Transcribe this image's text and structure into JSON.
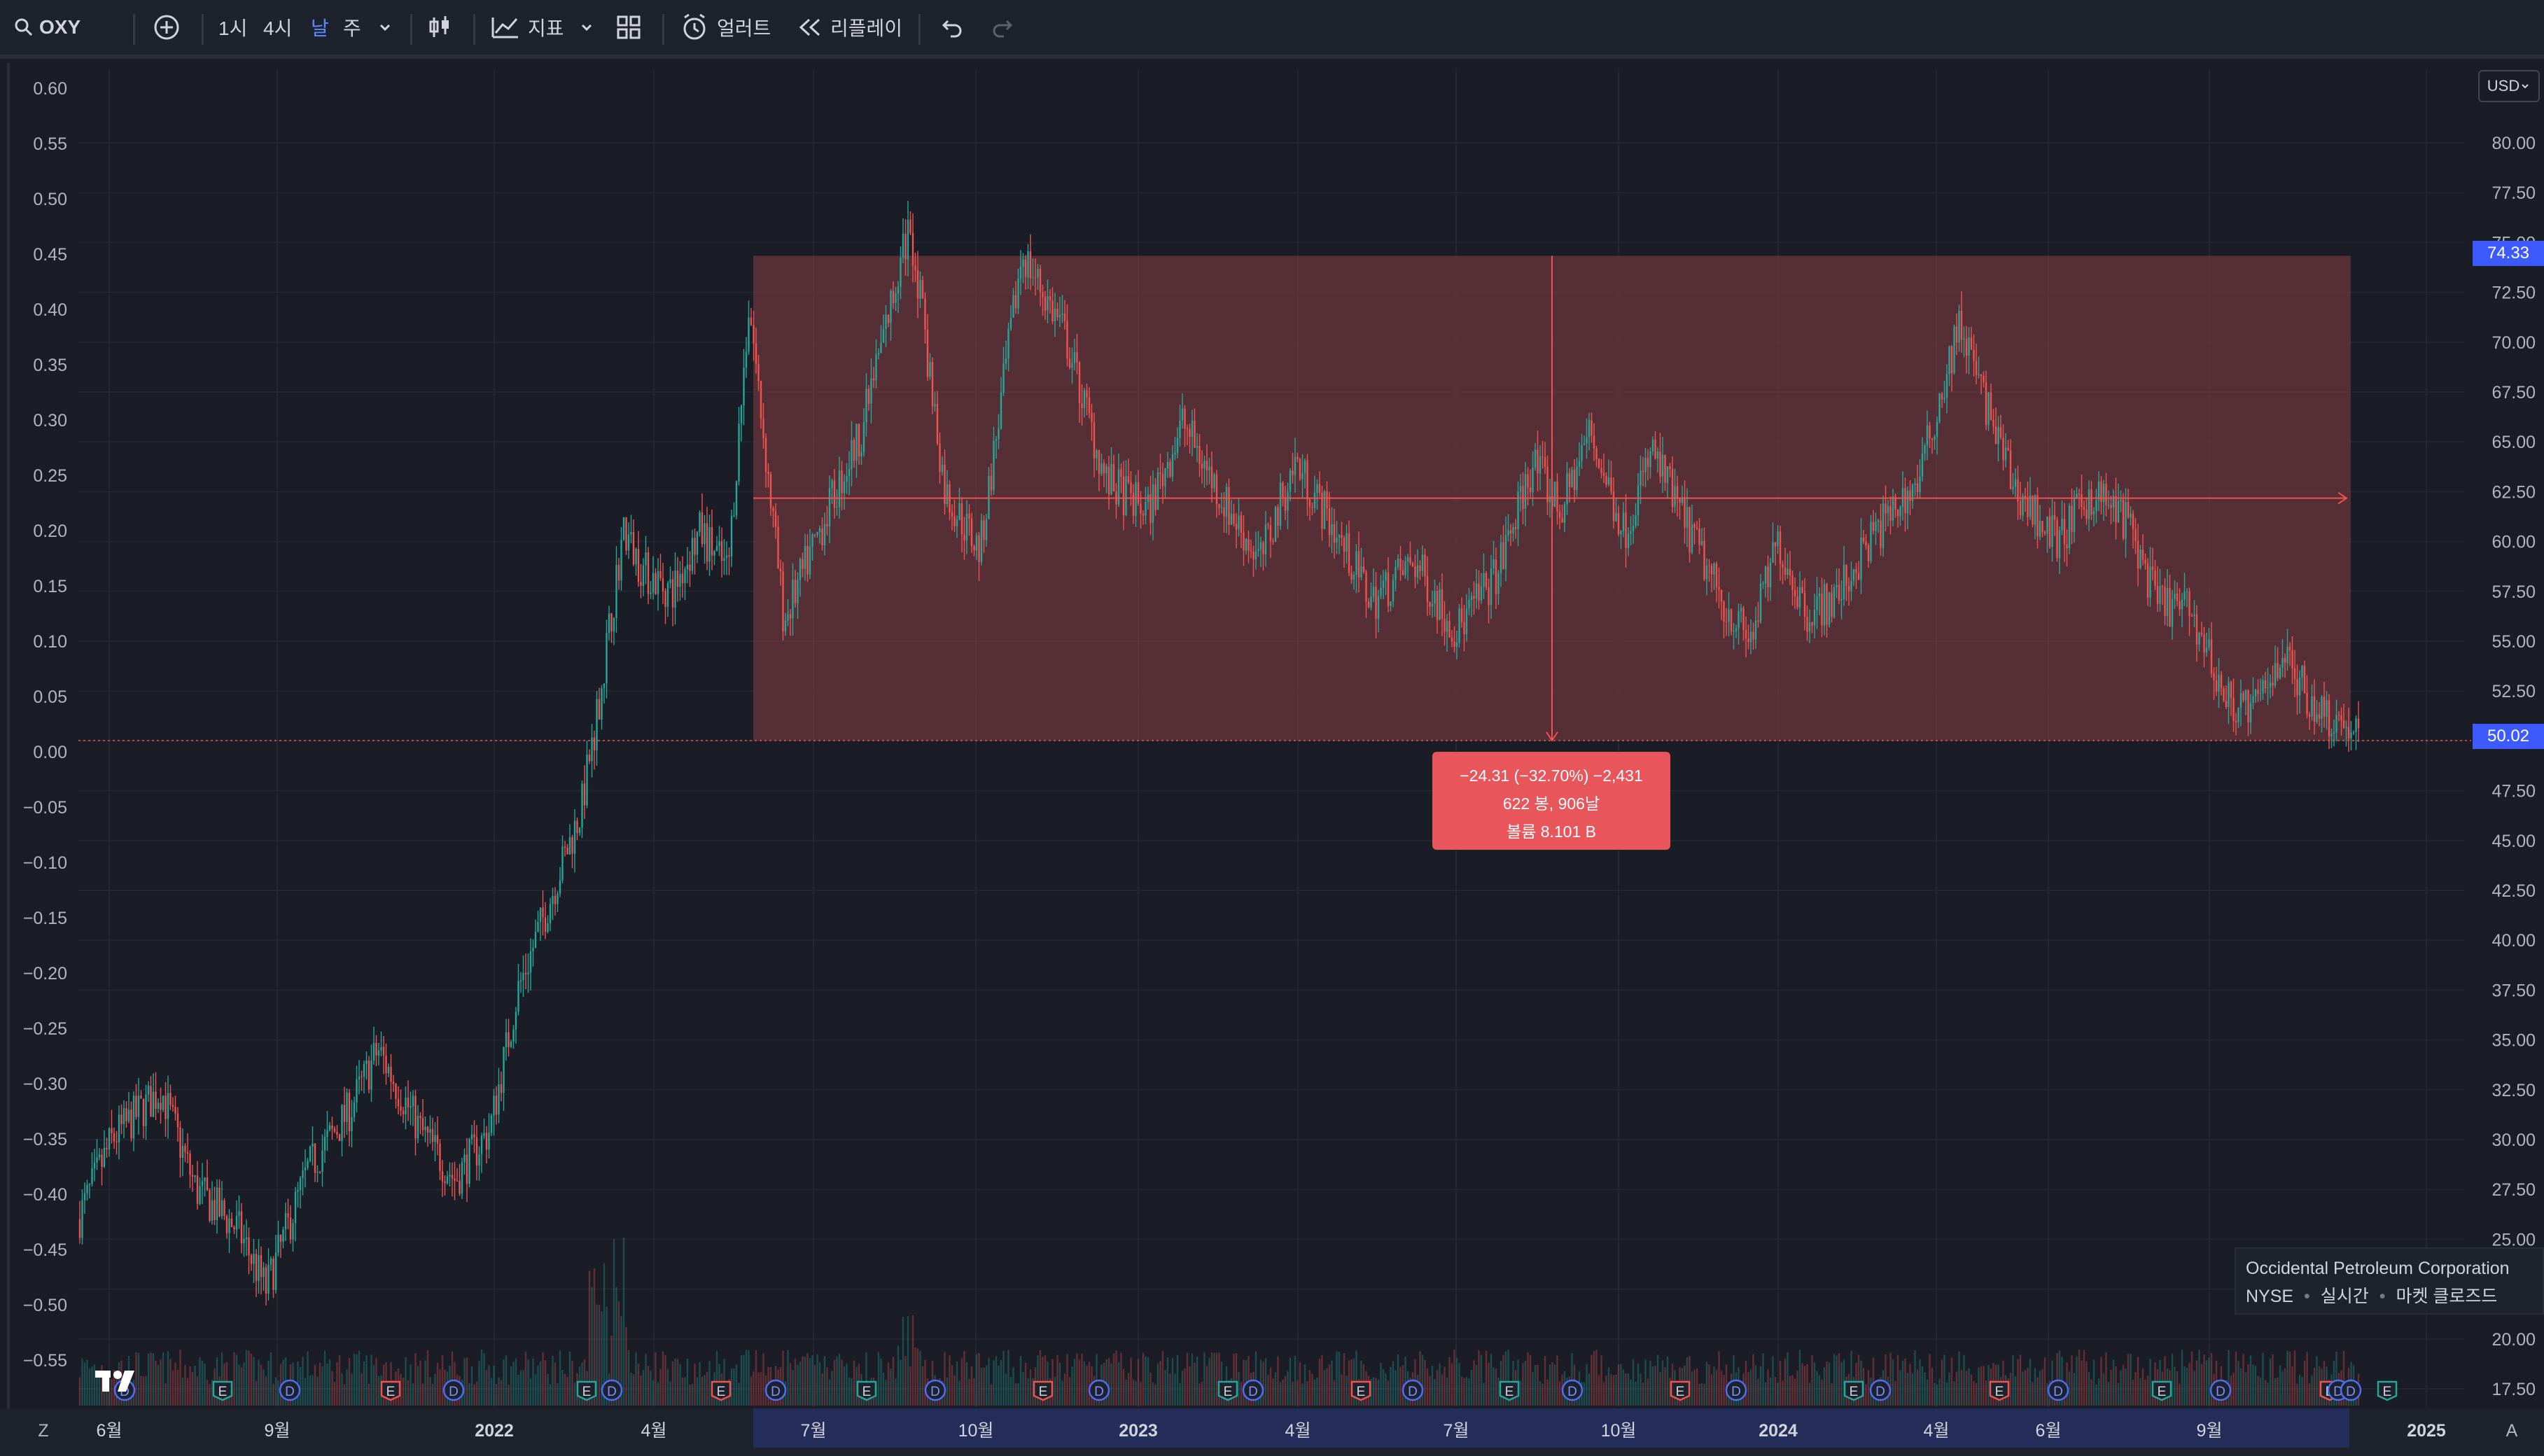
{
  "toolbar": {
    "symbol": "OXY",
    "intervals": [
      "1시",
      "4시",
      "날",
      "주"
    ],
    "active_interval": "날",
    "indicators_label": "지표",
    "alert_label": "얼러트",
    "replay_label": "리플레이"
  },
  "currency_button": "USD",
  "price_axis": {
    "labels": [
      "80.00",
      "77.50",
      "75.00",
      "72.50",
      "70.00",
      "67.50",
      "65.00",
      "62.50",
      "60.00",
      "57.50",
      "55.00",
      "52.50",
      "50.00",
      "47.50",
      "45.00",
      "42.50",
      "40.00",
      "37.50",
      "35.00",
      "32.50",
      "30.00",
      "27.50",
      "25.00",
      "22.50",
      "20.00",
      "17.50"
    ],
    "tag_top": {
      "value": "74.33",
      "color": "#3d5afe"
    },
    "tag_bottom": {
      "value": "50.02",
      "color": "#3d5afe"
    }
  },
  "percent_axis": {
    "labels": [
      "0.60",
      "0.55",
      "0.50",
      "0.45",
      "0.40",
      "0.35",
      "0.30",
      "0.25",
      "0.20",
      "0.15",
      "0.10",
      "0.05",
      "0.00",
      "−0.05",
      "−0.10",
      "−0.15",
      "−0.20",
      "−0.25",
      "−0.30",
      "−0.35",
      "−0.40",
      "−0.45",
      "−0.50",
      "−0.55"
    ]
  },
  "time_axis": {
    "labels": [
      {
        "text": "6월",
        "bold": false
      },
      {
        "text": "9월",
        "bold": false
      },
      {
        "text": "2022",
        "bold": true
      },
      {
        "text": "4월",
        "bold": false
      },
      {
        "text": "7월",
        "bold": false
      },
      {
        "text": "10월",
        "bold": false
      },
      {
        "text": "2023",
        "bold": true
      },
      {
        "text": "4월",
        "bold": false
      },
      {
        "text": "7월",
        "bold": false
      },
      {
        "text": "10월",
        "bold": false
      },
      {
        "text": "2024",
        "bold": true
      },
      {
        "text": "4월",
        "bold": false
      },
      {
        "text": "6월",
        "bold": false
      },
      {
        "text": "9월",
        "bold": false
      },
      {
        "text": "2025",
        "bold": true
      }
    ]
  },
  "measure_tooltip": {
    "line1": "−24.31 (−32.70%) −2,431",
    "line2": "622 봉, 906날",
    "line3": "볼륨 8.101 B"
  },
  "symbol_info": {
    "name": "Occidental Petroleum Corporation",
    "exchange": "NYSE",
    "status1": "실시간",
    "status2": "마켓 클로즈드"
  },
  "event_markers": [
    "D",
    "E",
    "D",
    "E",
    "D",
    "E",
    "D",
    "E",
    "D",
    "E",
    "D",
    "E",
    "D",
    "E",
    "D",
    "E",
    "D",
    "E",
    "D",
    "E",
    "D",
    "E",
    "D",
    "E",
    "D",
    "E",
    "D",
    "E",
    "D",
    "E",
    "D"
  ],
  "colors": {
    "up": "#26a69a",
    "down": "#ef5350",
    "measure_fill": "#7a3a3f",
    "accent": "#3d5afe",
    "time_range_highlight": "#252e5a"
  },
  "axis_corner_left": "Z",
  "axis_corner_right": "A"
}
